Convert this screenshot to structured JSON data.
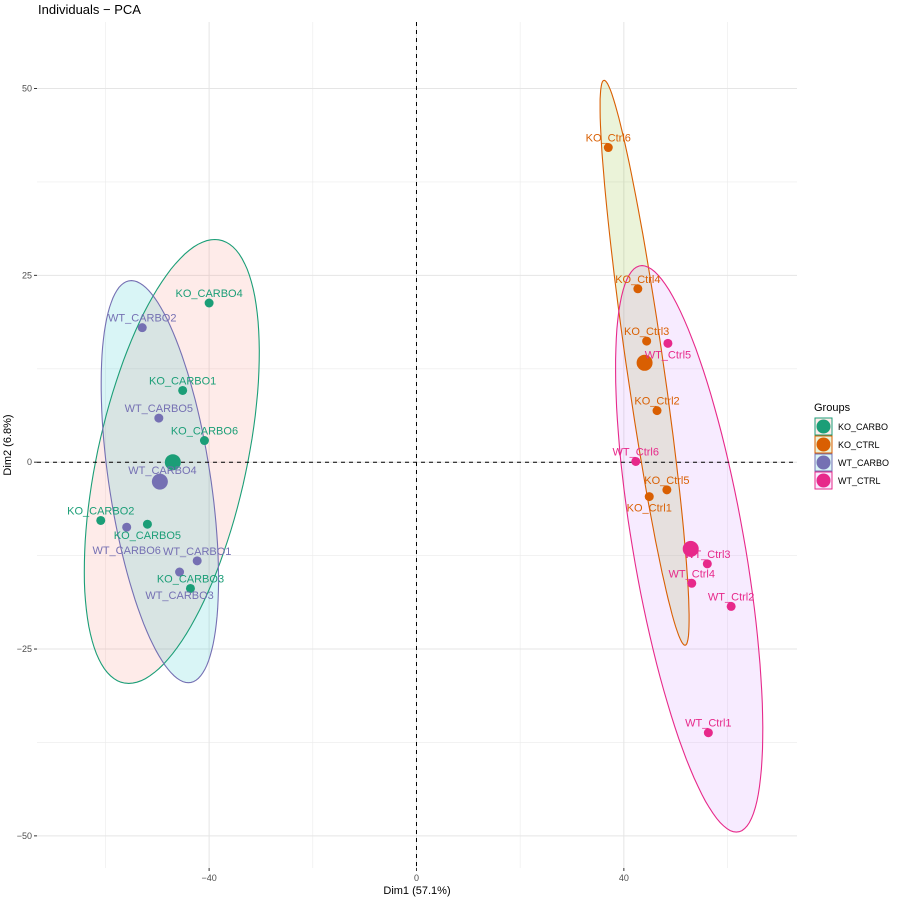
{
  "chart_data": {
    "type": "scatter",
    "title": "Individuals − PCA",
    "xlabel": "Dim1 (57.1%)",
    "ylabel": "Dim2 (6.8%)",
    "xlim": [
      -73.2,
      73.4
    ],
    "ylim": [
      -54.3,
      58.9
    ],
    "x_ticks": [
      -40,
      0,
      40
    ],
    "x_tick_labels": [
      "−40",
      "0",
      "40"
    ],
    "x_minor": [
      -60,
      -20,
      20,
      60
    ],
    "y_ticks": [
      50,
      25,
      0,
      -25,
      -50
    ],
    "y_tick_labels": [
      "50",
      "25",
      "0",
      "−25",
      "−50"
    ],
    "y_minor": [
      37.5,
      12.5,
      -12.5,
      -37.5
    ],
    "grid": true,
    "reference_lines": {
      "x": 0,
      "y": 0,
      "style": "dashed"
    },
    "legend": {
      "title": "Groups",
      "placement": "right",
      "entries": [
        "KO_CARBO",
        "KO_CTRL",
        "WT_CARBO",
        "WT_CTRL"
      ]
    },
    "groups": [
      {
        "name": "KO_CARBO",
        "color": "#1B9E77",
        "fill": "#F8766D",
        "centroid": [
          -47.0,
          0.0
        ],
        "ellipse": {
          "center": [
            -47.2,
            0.1
          ],
          "axis_a": [
            8.3,
            29.7
          ],
          "axis_b": [
            14.7,
            0.0
          ]
        },
        "points": [
          {
            "label": "KO_CARBO4",
            "x": -40.0,
            "y": 21.3
          },
          {
            "label": "KO_CARBO1",
            "x": -45.1,
            "y": 9.6
          },
          {
            "label": "KO_CARBO6",
            "x": -40.9,
            "y": 2.9
          },
          {
            "label": "KO_CARBO2",
            "x": -60.9,
            "y": -7.8
          },
          {
            "label": "KO_CARBO5",
            "x": -51.9,
            "y": -8.3
          },
          {
            "label": "KO_CARBO3",
            "x": -43.6,
            "y": -16.9
          }
        ]
      },
      {
        "name": "KO_CTRL",
        "color": "#D95F02",
        "fill": "#7CAE00",
        "centroid": [
          44.0,
          13.3
        ],
        "ellipse": {
          "center": [
            44.0,
            13.3
          ],
          "axis_a": [
            -7.8,
            37.8
          ],
          "axis_b": [
            3.6,
            0.0
          ]
        },
        "points": [
          {
            "label": "KO_Ctrl6",
            "x": 37.0,
            "y": 42.1
          },
          {
            "label": "KO_Ctrl4",
            "x": 42.7,
            "y": 23.2
          },
          {
            "label": "KO_Ctrl3",
            "x": 44.4,
            "y": 16.2
          },
          {
            "label": "KO_Ctrl2",
            "x": 46.4,
            "y": 6.9
          },
          {
            "label": "KO_Ctrl5",
            "x": 48.3,
            "y": -3.7
          },
          {
            "label": "KO_Ctrl1",
            "x": 44.9,
            "y": -4.6
          }
        ]
      },
      {
        "name": "WT_CARBO",
        "color": "#7570B3",
        "fill": "#00BFC4",
        "centroid": [
          -49.5,
          -2.6
        ],
        "ellipse": {
          "center": [
            -49.5,
            -2.6
          ],
          "axis_a": [
            -5.5,
            26.9
          ],
          "axis_b": [
            9.9,
            0.0
          ]
        },
        "points": [
          {
            "label": "WT_CARBO2",
            "x": -52.9,
            "y": 18.0
          },
          {
            "label": "WT_CARBO5",
            "x": -49.7,
            "y": 5.9
          },
          {
            "label": "WT_CARBO4",
            "x": -49.0,
            "y": -2.4
          },
          {
            "label": "WT_CARBO6",
            "x": -55.9,
            "y": -8.7
          },
          {
            "label": "WT_CARBO1",
            "x": -42.3,
            "y": -13.2
          },
          {
            "label": "WT_CARBO3",
            "x": -45.7,
            "y": -14.7
          }
        ]
      },
      {
        "name": "WT_CTRL",
        "color": "#E7298A",
        "fill": "#C77CFF",
        "centroid": [
          52.9,
          -11.6
        ],
        "ellipse": {
          "center": [
            52.6,
            -11.6
          ],
          "axis_a": [
            -9.1,
            37.9
          ],
          "axis_b": [
            10.9,
            0.0
          ]
        },
        "points": [
          {
            "label": "WT_Ctrl5",
            "x": 48.5,
            "y": 15.9
          },
          {
            "label": "WT_Ctrl6",
            "x": 42.3,
            "y": 0.1
          },
          {
            "label": "WT_Ctrl3",
            "x": 56.1,
            "y": -13.6
          },
          {
            "label": "WT_Ctrl4",
            "x": 53.1,
            "y": -16.2
          },
          {
            "label": "WT_Ctrl2",
            "x": 60.7,
            "y": -19.3
          },
          {
            "label": "WT_Ctrl1",
            "x": 56.3,
            "y": -36.2
          }
        ]
      }
    ]
  }
}
